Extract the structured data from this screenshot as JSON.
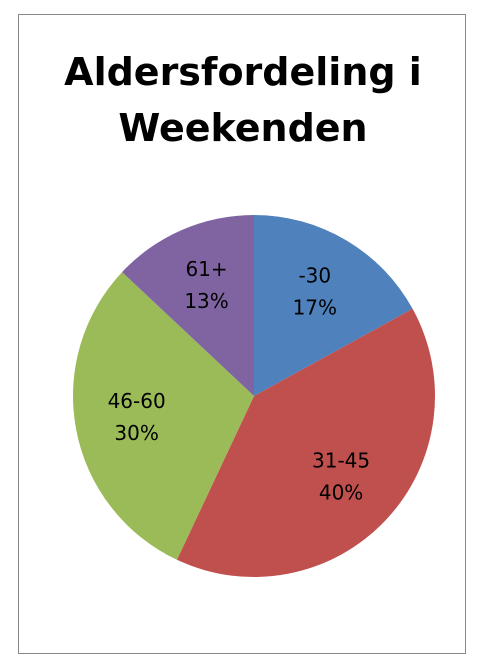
{
  "chart_data": {
    "type": "pie",
    "title": "Aldersfordeling i Weekenden",
    "categories": [
      "-30",
      "31-45",
      "46-60",
      "61+"
    ],
    "values": [
      17,
      40,
      30,
      13
    ],
    "value_labels": [
      "17%",
      "40%",
      "30%",
      "13%"
    ],
    "colors": [
      "#4f81bd",
      "#c0504d",
      "#9bbb59",
      "#8064a2"
    ]
  }
}
